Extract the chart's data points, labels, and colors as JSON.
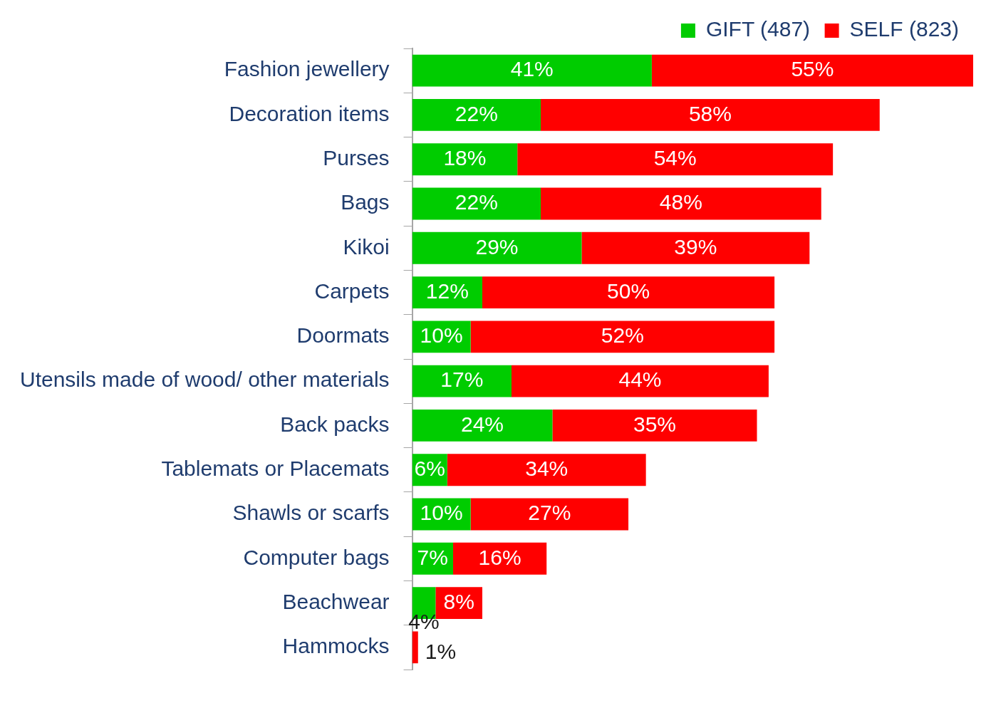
{
  "chart_data": {
    "type": "bar",
    "orientation": "horizontal",
    "stacked": true,
    "legend": "top right",
    "grid": false,
    "categories": [
      "Fashion jewellery",
      "Decoration items",
      "Purses",
      "Bags",
      "Kikoi",
      "Carpets",
      "Doormats",
      "Utensils made of wood/ other materials",
      "Back packs",
      "Tablemats or Placemats",
      "Shawls or scarfs",
      "Computer bags",
      "Beachwear",
      "Hammocks"
    ],
    "series": [
      {
        "name": "GIFT (487)",
        "color": "#00cc00",
        "values": [
          41,
          22,
          18,
          22,
          29,
          12,
          10,
          17,
          24,
          6,
          10,
          7,
          4,
          null
        ],
        "value_labels": [
          "41%",
          "22%",
          "18%",
          "22%",
          "29%",
          "12%",
          "10%",
          "17%",
          "24%",
          "6%",
          "10%",
          "7%",
          "4%",
          null
        ]
      },
      {
        "name": "SELF (823)",
        "color": "#ff0000",
        "values": [
          55,
          58,
          54,
          48,
          39,
          50,
          52,
          44,
          35,
          34,
          27,
          16,
          8,
          1
        ],
        "value_labels": [
          "55%",
          "58%",
          "54%",
          "48%",
          "39%",
          "50%",
          "52%",
          "44%",
          "35%",
          "34%",
          "27%",
          "16%",
          "8%",
          "1%"
        ]
      }
    ]
  }
}
